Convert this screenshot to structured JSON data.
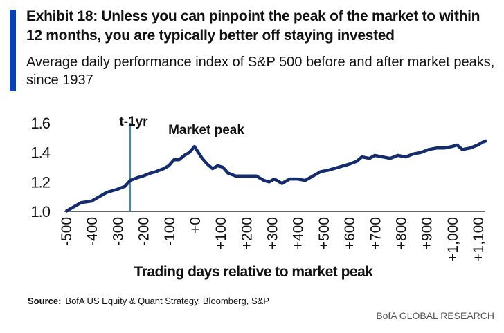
{
  "header": {
    "title": "Exhibit 18: Unless you can pinpoint the peak of the market to within 12 months, you are typically better off staying invested",
    "subtitle": "Average daily performance index of S&P 500 before and after market peaks, since 1937"
  },
  "footer": {
    "source_label": "Source:",
    "source_text": "BofA US Equity & Quant Strategy, Bloomberg, S&P",
    "brand": "BofA GLOBAL RESEARCH"
  },
  "chart_data": {
    "type": "line",
    "title": "",
    "xlabel": "Trading days relative to market peak",
    "ylabel": "",
    "xlim": [
      -510,
      1135
    ],
    "ylim": [
      1.0,
      1.6
    ],
    "yticks": [
      "1.0",
      "1.2",
      "1.4",
      "1.6"
    ],
    "ytick_values": [
      1.0,
      1.2,
      1.4,
      1.6
    ],
    "xticks": [
      "-500",
      "-400",
      "-300",
      "-200",
      "-100",
      "+0",
      "+100",
      "+200",
      "+300",
      "+400",
      "+500",
      "+600",
      "+700",
      "+800",
      "+900",
      "+1,000",
      "+1,100"
    ],
    "xtick_values": [
      -500,
      -400,
      -300,
      -200,
      -100,
      0,
      100,
      200,
      300,
      400,
      500,
      600,
      700,
      800,
      900,
      1000,
      1100
    ],
    "annotations": [
      {
        "text": "t-1yr",
        "x": -250
      },
      {
        "text": "Market  peak",
        "x": 0
      }
    ],
    "color": "#142c6e",
    "marker_color": "#2a8fc0",
    "series": [
      {
        "name": "S&P 500 index",
        "x": [
          -500,
          -470,
          -440,
          -400,
          -370,
          -340,
          -300,
          -270,
          -250,
          -220,
          -200,
          -170,
          -150,
          -120,
          -100,
          -80,
          -60,
          -40,
          -20,
          -5,
          0,
          15,
          30,
          50,
          70,
          90,
          110,
          130,
          160,
          200,
          240,
          270,
          290,
          310,
          340,
          370,
          400,
          430,
          460,
          490,
          520,
          560,
          600,
          630,
          650,
          680,
          700,
          730,
          760,
          790,
          820,
          850,
          880,
          910,
          940,
          970,
          1000,
          1020,
          1040,
          1070,
          1100,
          1120,
          1135
        ],
        "y": [
          1.0,
          1.03,
          1.06,
          1.07,
          1.1,
          1.13,
          1.15,
          1.17,
          1.21,
          1.23,
          1.24,
          1.26,
          1.27,
          1.29,
          1.31,
          1.35,
          1.35,
          1.38,
          1.4,
          1.43,
          1.44,
          1.4,
          1.36,
          1.32,
          1.29,
          1.31,
          1.3,
          1.26,
          1.24,
          1.24,
          1.24,
          1.21,
          1.2,
          1.22,
          1.19,
          1.22,
          1.22,
          1.21,
          1.24,
          1.27,
          1.28,
          1.3,
          1.32,
          1.34,
          1.37,
          1.36,
          1.38,
          1.37,
          1.36,
          1.38,
          1.37,
          1.39,
          1.4,
          1.42,
          1.43,
          1.43,
          1.44,
          1.45,
          1.42,
          1.43,
          1.45,
          1.47,
          1.48
        ]
      }
    ]
  }
}
